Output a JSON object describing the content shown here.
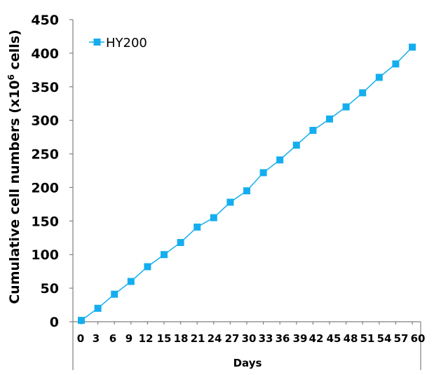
{
  "chart_data": {
    "type": "line",
    "xlabel": "Days",
    "ylabel": "Cumulative cell numbers (x10",
    "ylabel_superscript": "6",
    "ylabel_suffix": " cells)",
    "ylim": [
      0,
      450
    ],
    "yticks": [
      0,
      50,
      100,
      150,
      200,
      250,
      300,
      350,
      400,
      450
    ],
    "categories": [
      "0",
      "3",
      "6",
      "9",
      "12",
      "15",
      "18",
      "21",
      "24",
      "27",
      "30",
      "33",
      "36",
      "39",
      "42",
      "45",
      "48",
      "51",
      "54",
      "57",
      "60"
    ],
    "grid": false,
    "legend_position": "top-left",
    "series": [
      {
        "name": "HY200",
        "color": "#14AEEF",
        "marker": "square",
        "values": [
          2,
          20,
          41,
          60,
          82,
          100,
          118,
          141,
          155,
          178,
          195,
          222,
          241,
          263,
          285,
          302,
          320,
          341,
          364,
          384,
          409
        ]
      }
    ]
  }
}
